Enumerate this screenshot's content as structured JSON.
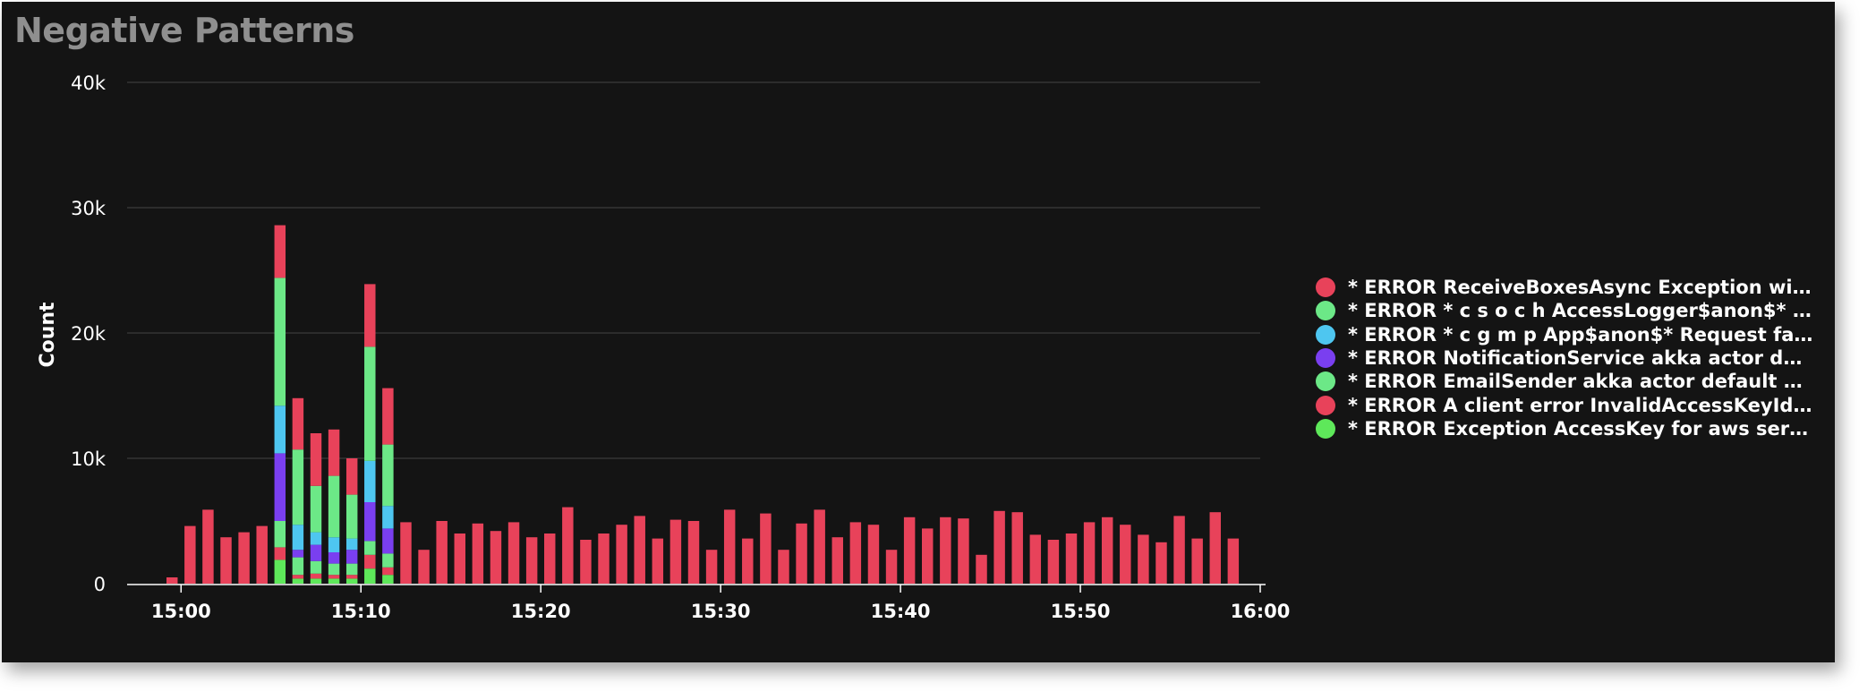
{
  "panel": {
    "title": "Negative Patterns"
  },
  "colors": {
    "red": "#e8425a",
    "green": "#6ce887",
    "blue": "#4ec6f0",
    "purple": "#7a3ff0",
    "lime": "#5ee85a",
    "grid": "#3a3a3a",
    "axis": "#ffffff"
  },
  "chart_data": {
    "type": "bar",
    "stacked": true,
    "ylabel": "Count",
    "ylim": [
      0,
      40000
    ],
    "yticks": [
      0,
      10000,
      20000,
      30000,
      40000
    ],
    "ytick_labels": [
      "0",
      "10k",
      "20k",
      "30k",
      "40k"
    ],
    "xrange_min": [
      -3,
      60
    ],
    "xticks_min": [
      0,
      10,
      20,
      30,
      40,
      50,
      60
    ],
    "xtick_labels": [
      "15:00",
      "15:10",
      "15:20",
      "15:30",
      "15:40",
      "15:50",
      "16:00"
    ],
    "grid": true,
    "legend_position": "right",
    "x_min": [
      -1,
      0,
      1,
      2,
      3,
      4,
      5,
      6,
      7,
      8,
      9,
      10,
      11,
      12,
      13,
      14,
      15,
      16,
      17,
      18,
      19,
      20,
      21,
      22,
      23,
      24,
      25,
      26,
      27,
      28,
      29,
      30,
      31,
      32,
      33,
      34,
      35,
      36,
      37,
      38,
      39,
      40,
      41,
      42,
      43,
      44,
      45,
      46,
      47,
      48,
      49,
      50,
      51,
      52,
      53,
      54,
      55,
      56,
      57,
      58
    ],
    "series": [
      {
        "name": "* ERROR Exception AccessKey for aws serv...",
        "color": "#5ee85a",
        "values": [
          0,
          0,
          0,
          0,
          0,
          0,
          1900,
          400,
          400,
          400,
          400,
          1200,
          700,
          0,
          0,
          0,
          0,
          0,
          0,
          0,
          0,
          0,
          0,
          0,
          0,
          0,
          0,
          0,
          0,
          0,
          0,
          0,
          0,
          0,
          0,
          0,
          0,
          0,
          0,
          0,
          0,
          0,
          0,
          0,
          0,
          0,
          0,
          0,
          0,
          0,
          0,
          0,
          0,
          0,
          0,
          0,
          0,
          0,
          0,
          0
        ]
      },
      {
        "name": "* ERROR A client error InvalidAccessKeyId ...",
        "color": "#e8425a",
        "values": [
          0,
          0,
          0,
          0,
          0,
          0,
          1000,
          300,
          400,
          300,
          300,
          1100,
          600,
          0,
          0,
          0,
          0,
          0,
          0,
          0,
          0,
          0,
          0,
          0,
          0,
          0,
          0,
          0,
          0,
          0,
          0,
          0,
          0,
          0,
          0,
          0,
          0,
          0,
          0,
          0,
          0,
          0,
          0,
          0,
          0,
          0,
          0,
          0,
          0,
          0,
          0,
          0,
          0,
          0,
          0,
          0,
          0,
          0,
          0,
          0
        ]
      },
      {
        "name": "* ERROR EmailSender akka actor default di...",
        "color": "#6ce887",
        "values": [
          0,
          0,
          0,
          0,
          0,
          0,
          2100,
          1400,
          1000,
          900,
          900,
          1100,
          1100,
          0,
          0,
          0,
          0,
          0,
          0,
          0,
          0,
          0,
          0,
          0,
          0,
          0,
          0,
          0,
          0,
          0,
          0,
          0,
          0,
          0,
          0,
          0,
          0,
          0,
          0,
          0,
          0,
          0,
          0,
          0,
          0,
          0,
          0,
          0,
          0,
          0,
          0,
          0,
          0,
          0,
          0,
          0,
          0,
          0,
          0,
          0
        ]
      },
      {
        "name": "* ERROR NotificationService akka actor def...",
        "color": "#7a3ff0",
        "values": [
          0,
          0,
          0,
          0,
          0,
          0,
          5400,
          600,
          1300,
          900,
          1100,
          3100,
          2000,
          0,
          0,
          0,
          0,
          0,
          0,
          0,
          0,
          0,
          0,
          0,
          0,
          0,
          0,
          0,
          0,
          0,
          0,
          0,
          0,
          0,
          0,
          0,
          0,
          0,
          0,
          0,
          0,
          0,
          0,
          0,
          0,
          0,
          0,
          0,
          0,
          0,
          0,
          0,
          0,
          0,
          0,
          0,
          0,
          0,
          0,
          0
        ]
      },
      {
        "name": "* ERROR * c g m p App$anon$* Request fai...",
        "color": "#4ec6f0",
        "values": [
          0,
          0,
          0,
          0,
          0,
          0,
          3800,
          2000,
          1000,
          1200,
          900,
          3300,
          1800,
          0,
          0,
          0,
          0,
          0,
          0,
          0,
          0,
          0,
          0,
          0,
          0,
          0,
          0,
          0,
          0,
          0,
          0,
          0,
          0,
          0,
          0,
          0,
          0,
          0,
          0,
          0,
          0,
          0,
          0,
          0,
          0,
          0,
          0,
          0,
          0,
          0,
          0,
          0,
          0,
          0,
          0,
          0,
          0,
          0,
          0,
          0
        ]
      },
      {
        "name": "* ERROR * c s o c h AccessLogger$anon$* ...",
        "color": "#6ce887",
        "values": [
          0,
          0,
          0,
          0,
          0,
          0,
          10200,
          6000,
          3700,
          4900,
          3500,
          9100,
          4900,
          0,
          0,
          0,
          0,
          0,
          0,
          0,
          0,
          0,
          0,
          0,
          0,
          0,
          0,
          0,
          0,
          0,
          0,
          0,
          0,
          0,
          0,
          0,
          0,
          0,
          0,
          0,
          0,
          0,
          0,
          0,
          0,
          0,
          0,
          0,
          0,
          0,
          0,
          0,
          0,
          0,
          0,
          0,
          0,
          0,
          0,
          0
        ]
      },
      {
        "name": "* ERROR ReceiveBoxesAsync Exception wit...",
        "color": "#e8425a",
        "values": [
          500,
          4600,
          5900,
          3700,
          4100,
          4600,
          4200,
          4100,
          4200,
          3700,
          2900,
          5000,
          4500,
          4900,
          2700,
          5000,
          4000,
          4800,
          4200,
          4900,
          3700,
          4000,
          6100,
          3500,
          4000,
          4700,
          5400,
          3600,
          5100,
          5000,
          2700,
          5900,
          3600,
          5600,
          2700,
          4800,
          5900,
          3700,
          4900,
          4700,
          2700,
          5300,
          4400,
          5300,
          5200,
          2300,
          5800,
          5700,
          3900,
          3500,
          4000,
          4900,
          5300,
          4700,
          3900,
          3300,
          5400,
          3600,
          5700,
          3600
        ]
      }
    ]
  }
}
